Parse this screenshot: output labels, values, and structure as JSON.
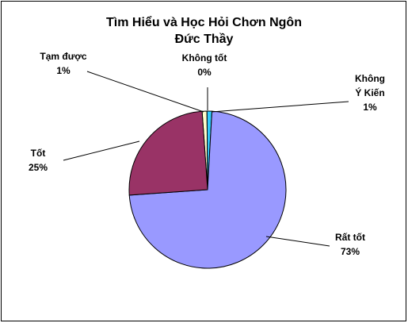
{
  "chart_data": {
    "type": "pie",
    "title": "Tìm Hiểu và Học Hỏi Chơn Ngôn Đức Thầy",
    "categories": [
      "Tạm được",
      "Không tốt",
      "Không Ý Kiến",
      "Rất tốt",
      "Tốt"
    ],
    "values": [
      1,
      0,
      1,
      73,
      25
    ],
    "value_labels": [
      "1%",
      "0%",
      "1%",
      "73%",
      "25%"
    ],
    "colors": [
      "#ffffcc",
      "#660066",
      "#33ccff",
      "#9999ff",
      "#993366"
    ]
  }
}
